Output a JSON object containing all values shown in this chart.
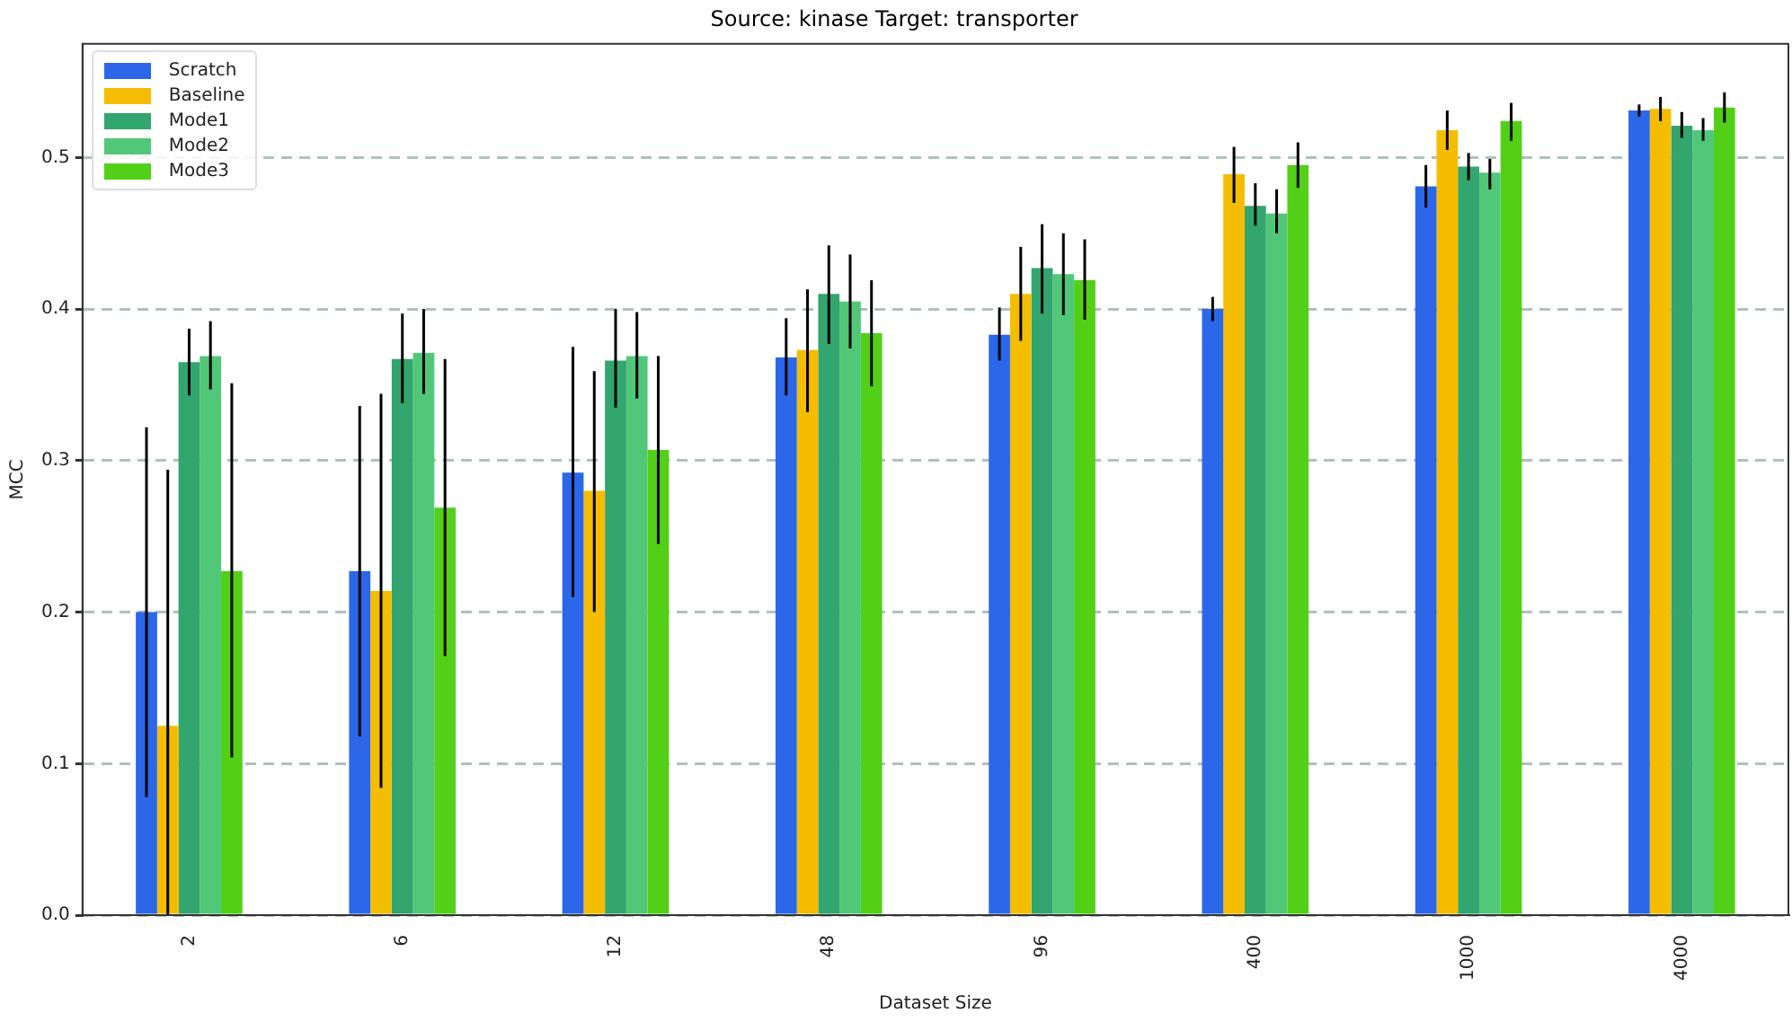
{
  "chart_data": {
    "type": "bar",
    "title": "Source: kinase Target: transporter",
    "xlabel": "Dataset Size",
    "ylabel": "MCC",
    "categories": [
      "2",
      "6",
      "12",
      "48",
      "96",
      "400",
      "1000",
      "4000"
    ],
    "ylim": [
      0,
      0.575
    ],
    "yticks": [
      {
        "value": 0,
        "label": "0.0"
      },
      {
        "value": 0.1,
        "label": "0.1"
      },
      {
        "value": 0.2,
        "label": "0.2"
      },
      {
        "value": 0.3,
        "label": "0.3"
      },
      {
        "value": 0.4,
        "label": "0.4"
      },
      {
        "value": 0.5,
        "label": "0.5"
      }
    ],
    "grid": "y",
    "line_style": "dashed",
    "legend": "top left",
    "series": [
      {
        "name": "Scratch",
        "color": "#2b67e8",
        "values": [
          0.2,
          0.227,
          0.292,
          0.368,
          0.383,
          0.4,
          0.481,
          0.531
        ],
        "errors": [
          [
            0.078,
            0.322
          ],
          [
            0.118,
            0.336
          ],
          [
            0.21,
            0.375
          ],
          [
            0.343,
            0.394
          ],
          [
            0.366,
            0.401
          ],
          [
            0.392,
            0.408
          ],
          [
            0.467,
            0.495
          ],
          [
            0.527,
            0.535
          ]
        ]
      },
      {
        "name": "Baseline",
        "color": "#f5bd00",
        "values": [
          0.125,
          0.214,
          0.28,
          0.373,
          0.41,
          0.489,
          0.518,
          0.532
        ],
        "errors": [
          [
            0.0,
            0.294
          ],
          [
            0.084,
            0.344
          ],
          [
            0.2,
            0.359
          ],
          [
            0.332,
            0.413
          ],
          [
            0.379,
            0.441
          ],
          [
            0.47,
            0.507
          ],
          [
            0.505,
            0.531
          ],
          [
            0.524,
            0.54
          ]
        ]
      },
      {
        "name": "Mode1",
        "color": "#33a56f",
        "values": [
          0.365,
          0.367,
          0.366,
          0.41,
          0.427,
          0.468,
          0.494,
          0.521
        ],
        "errors": [
          [
            0.343,
            0.387
          ],
          [
            0.338,
            0.397
          ],
          [
            0.335,
            0.4
          ],
          [
            0.377,
            0.442
          ],
          [
            0.397,
            0.456
          ],
          [
            0.455,
            0.483
          ],
          [
            0.485,
            0.503
          ],
          [
            0.513,
            0.53
          ]
        ]
      },
      {
        "name": "Mode2",
        "color": "#50c878",
        "values": [
          0.369,
          0.371,
          0.369,
          0.405,
          0.423,
          0.463,
          0.49,
          0.518
        ],
        "errors": [
          [
            0.347,
            0.392
          ],
          [
            0.344,
            0.4
          ],
          [
            0.341,
            0.398
          ],
          [
            0.374,
            0.436
          ],
          [
            0.396,
            0.45
          ],
          [
            0.45,
            0.479
          ],
          [
            0.479,
            0.499
          ],
          [
            0.511,
            0.526
          ]
        ]
      },
      {
        "name": "Mode3",
        "color": "#52d017",
        "values": [
          0.227,
          0.269,
          0.307,
          0.384,
          0.419,
          0.495,
          0.524,
          0.533
        ],
        "errors": [
          [
            0.104,
            0.351
          ],
          [
            0.171,
            0.367
          ],
          [
            0.245,
            0.369
          ],
          [
            0.349,
            0.419
          ],
          [
            0.393,
            0.446
          ],
          [
            0.48,
            0.51
          ],
          [
            0.511,
            0.536
          ],
          [
            0.523,
            0.543
          ]
        ]
      }
    ]
  }
}
